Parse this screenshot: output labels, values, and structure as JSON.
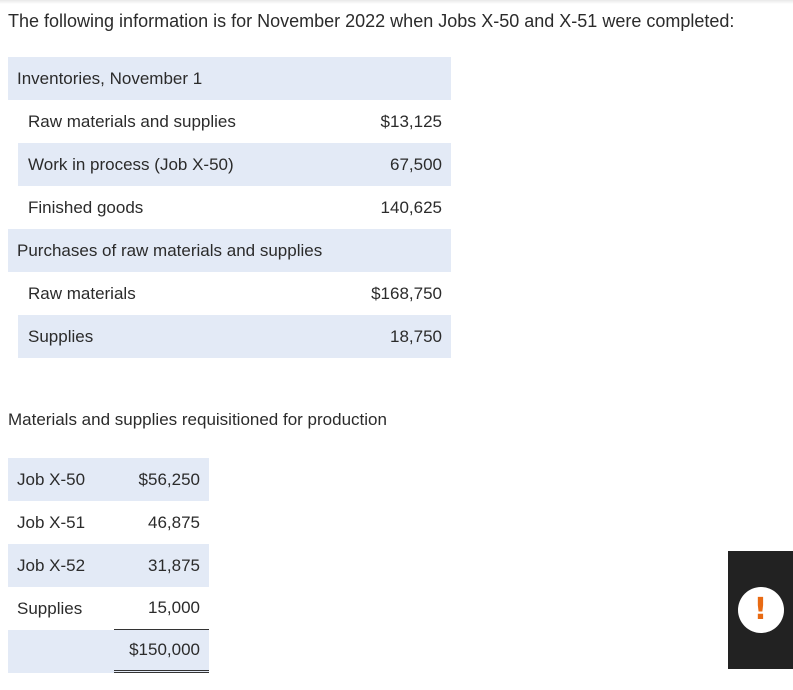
{
  "intro": "The following information is for November 2022 when Jobs X-50 and X-51 were completed:",
  "inventories": {
    "heading": "Inventories, November 1",
    "rows": [
      {
        "label": "Raw materials and supplies",
        "value": "$13,125"
      },
      {
        "label": "Work in process (Job X-50)",
        "value": "67,500"
      },
      {
        "label": "Finished goods",
        "value": "140,625"
      }
    ]
  },
  "purchases": {
    "heading": "Purchases of raw materials and supplies",
    "rows": [
      {
        "label": "Raw materials",
        "value": "$168,750"
      },
      {
        "label": "Supplies",
        "value": "18,750"
      }
    ]
  },
  "requisitions": {
    "heading": "Materials and supplies requisitioned for production",
    "rows": [
      {
        "label": "Job X-50",
        "value": "$56,250"
      },
      {
        "label": "Job X-51",
        "value": "46,875"
      },
      {
        "label": "Job X-52",
        "value": "31,875"
      },
      {
        "label": "Supplies",
        "value": "15,000"
      }
    ],
    "total": "$150,000"
  },
  "alert": {
    "icon": "exclamation-icon",
    "glyph": "!",
    "accent_color": "#e86a13"
  }
}
